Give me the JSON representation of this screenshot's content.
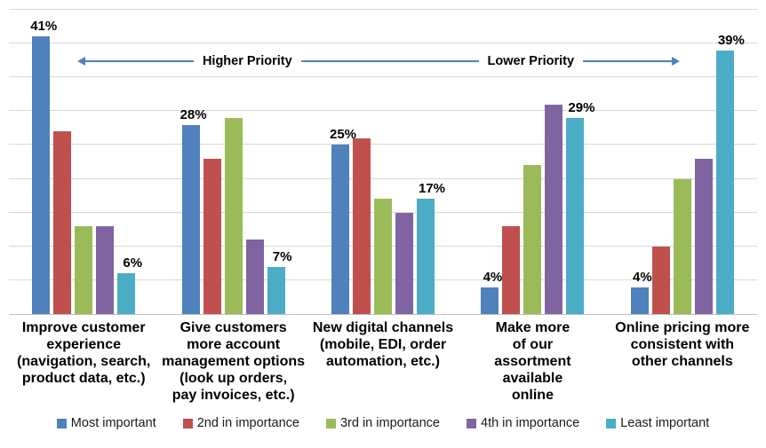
{
  "chart_data": {
    "type": "bar",
    "title": "",
    "xlabel": "",
    "ylabel": "",
    "ylim": [
      0,
      45
    ],
    "grid_step": 5,
    "grid": true,
    "legend_position": "bottom",
    "categories": [
      "Improve customer\nexperience\n(navigation, search,\nproduct data, etc.)",
      "Give customers\nmore account\nmanagement options\n(look up orders,\npay invoices, etc.)",
      "New digital channels\n(mobile, EDI, order\nautomation, etc.)",
      "Make more\nof our\nassortment\navailable\nonline",
      "Online pricing more\nconsistent with\nother channels"
    ],
    "series": [
      {
        "name": "Most important",
        "color": "#4F81BD",
        "values": [
          41,
          28,
          25,
          4,
          4
        ],
        "labels": [
          "41%",
          "28%",
          "25%",
          "4%",
          "4%"
        ]
      },
      {
        "name": "2nd in importance",
        "color": "#C0504D",
        "values": [
          27,
          23,
          26,
          13,
          10
        ],
        "labels": null
      },
      {
        "name": "3rd in importance",
        "color": "#9BBB59",
        "values": [
          13,
          29,
          17,
          22,
          20
        ],
        "labels": null
      },
      {
        "name": "4th in importance",
        "color": "#8064A2",
        "values": [
          13,
          11,
          15,
          31,
          23
        ],
        "labels": null
      },
      {
        "name": "Least important",
        "color": "#4BACC6",
        "values": [
          6,
          7,
          17,
          29,
          39
        ],
        "labels": [
          "6%",
          "7%",
          "17%",
          "29%",
          "39%"
        ]
      }
    ],
    "annotations": {
      "higher_priority": "Higher Priority",
      "lower_priority": "Lower Priority"
    }
  },
  "colors": {
    "gridline": "#D9D9D9",
    "axis": "#BFBFBF",
    "arrow": "#4F81BD",
    "bar_blue": "#4F81BD",
    "bar_red": "#C0504D",
    "bar_green": "#9BBB59",
    "bar_purple": "#8064A2",
    "bar_teal": "#4BACC6"
  }
}
